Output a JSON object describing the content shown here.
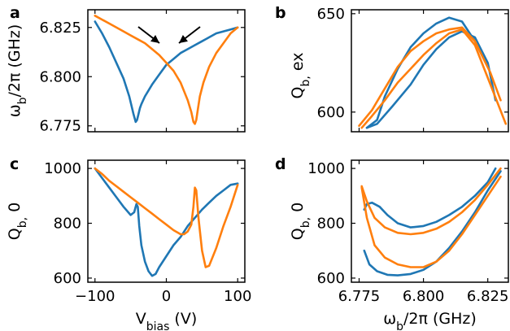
{
  "colors": {
    "blue": "#1f77b4",
    "orange": "#ff7f0e"
  },
  "chart_data": [
    {
      "id": "a",
      "panel_label": "a",
      "type": "line",
      "ylabel": "ω_b/2π (GHz)",
      "xlabel": "",
      "xlim": [
        -110,
        110
      ],
      "ylim": [
        6.772,
        6.834
      ],
      "xticks": [
        -100,
        0,
        100
      ],
      "xtick_labels": [
        "",
        "",
        ""
      ],
      "yticks": [
        6.775,
        6.8,
        6.825
      ],
      "ytick_labels": [
        "6.775",
        "6.800",
        "6.825"
      ],
      "annotations": [
        "arrow",
        "arrow"
      ],
      "series": [
        {
          "color": "blue",
          "x": [
            -100,
            -90,
            -80,
            -70,
            -60,
            -52,
            -46,
            -43,
            -41,
            -39,
            -37,
            -35,
            -30,
            -20,
            -10,
            0,
            10,
            20,
            30,
            40,
            50,
            60,
            70,
            80,
            90,
            100
          ],
          "y": [
            6.828,
            6.822,
            6.815,
            6.807,
            6.799,
            6.79,
            6.781,
            6.777,
            6.778,
            6.781,
            6.784,
            6.786,
            6.79,
            6.796,
            6.801,
            6.806,
            6.809,
            6.812,
            6.814,
            6.816,
            6.818,
            6.82,
            6.822,
            6.823,
            6.824,
            6.825
          ]
        },
        {
          "color": "orange",
          "x": [
            -100,
            -90,
            -80,
            -70,
            -60,
            -50,
            -40,
            -30,
            -20,
            -10,
            0,
            10,
            20,
            30,
            35,
            38,
            40,
            42,
            44,
            47,
            52,
            60,
            70,
            80,
            90,
            100
          ],
          "y": [
            6.831,
            6.829,
            6.827,
            6.825,
            6.823,
            6.821,
            6.819,
            6.817,
            6.814,
            6.811,
            6.807,
            6.803,
            6.797,
            6.788,
            6.782,
            6.777,
            6.776,
            6.778,
            6.783,
            6.79,
            6.797,
            6.805,
            6.812,
            6.817,
            6.822,
            6.825
          ]
        }
      ]
    },
    {
      "id": "b",
      "panel_label": "b",
      "type": "line",
      "ylabel": "Q_b, ex",
      "xlabel": "",
      "xlim": [
        6.772,
        6.833
      ],
      "ylim": [
        590,
        652
      ],
      "xticks": [
        6.775,
        6.8,
        6.825
      ],
      "xtick_labels": [
        "",
        "",
        ""
      ],
      "yticks": [
        600,
        650
      ],
      "ytick_labels": [
        "600",
        "650"
      ],
      "series": [
        {
          "color": "blue",
          "x": [
            6.778,
            6.782,
            6.785,
            6.79,
            6.795,
            6.8,
            6.805,
            6.81,
            6.815,
            6.82,
            6.825
          ],
          "y": [
            592,
            596,
            608,
            622,
            633,
            640,
            645,
            648,
            646,
            636,
            623
          ]
        },
        {
          "color": "blue",
          "x": [
            6.778,
            6.782,
            6.788,
            6.795,
            6.8,
            6.805,
            6.81,
            6.815,
            6.82,
            6.825,
            6.828
          ],
          "y": [
            592,
            594,
            603,
            614,
            624,
            632,
            638,
            641,
            638,
            625,
            606
          ]
        },
        {
          "color": "orange",
          "x": [
            6.775,
            6.78,
            6.785,
            6.79,
            6.795,
            6.8,
            6.805,
            6.81,
            6.815,
            6.82,
            6.826,
            6.83
          ],
          "y": [
            593,
            601,
            612,
            623,
            631,
            636,
            640,
            642,
            643,
            636,
            620,
            606
          ]
        },
        {
          "color": "orange",
          "x": [
            6.776,
            6.78,
            6.785,
            6.79,
            6.795,
            6.8,
            6.805,
            6.81,
            6.815,
            6.82,
            6.826,
            6.832
          ],
          "y": [
            592,
            598,
            606,
            615,
            622,
            629,
            635,
            640,
            642,
            634,
            614,
            594
          ]
        }
      ]
    },
    {
      "id": "c",
      "panel_label": "c",
      "type": "line",
      "ylabel": "Q_b, 0",
      "xlabel": "V_bias (V)",
      "xlim": [
        -110,
        110
      ],
      "ylim": [
        585,
        1030
      ],
      "xticks": [
        -100,
        0,
        100
      ],
      "xtick_labels": [
        "−100",
        "0",
        "100"
      ],
      "yticks": [
        600,
        800,
        1000
      ],
      "ytick_labels": [
        "600",
        "800",
        "1000"
      ],
      "series": [
        {
          "color": "blue",
          "x": [
            -100,
            -90,
            -80,
            -70,
            -60,
            -50,
            -45,
            -42,
            -40,
            -38,
            -35,
            -30,
            -25,
            -20,
            -15,
            -10,
            0,
            10,
            20,
            30,
            40,
            50,
            60,
            70,
            80,
            90,
            100
          ],
          "y": [
            1000,
            965,
            930,
            895,
            860,
            830,
            840,
            870,
            860,
            790,
            720,
            660,
            625,
            608,
            615,
            640,
            680,
            720,
            750,
            790,
            820,
            850,
            875,
            900,
            920,
            940,
            945
          ]
        },
        {
          "color": "orange",
          "x": [
            -100,
            -90,
            -80,
            -70,
            -60,
            -50,
            -40,
            -30,
            -20,
            -10,
            0,
            10,
            20,
            25,
            30,
            35,
            38,
            40,
            42,
            45,
            50,
            55,
            60,
            70,
            80,
            90,
            100
          ],
          "y": [
            1000,
            980,
            955,
            935,
            915,
            895,
            875,
            855,
            835,
            815,
            795,
            775,
            760,
            760,
            770,
            795,
            860,
            930,
            920,
            820,
            700,
            640,
            645,
            710,
            790,
            860,
            940
          ]
        }
      ]
    },
    {
      "id": "d",
      "panel_label": "d",
      "type": "line",
      "ylabel": "Q_b, 0",
      "xlabel": "ω_b/2π (GHz)",
      "xlim": [
        6.772,
        6.833
      ],
      "ylim": [
        585,
        1030
      ],
      "xticks": [
        6.775,
        6.8,
        6.825
      ],
      "xtick_labels": [
        "6.775",
        "6.800",
        "6.825"
      ],
      "yticks": [
        600,
        800,
        1000
      ],
      "ytick_labels": [
        "600",
        "800",
        "1000"
      ],
      "series": [
        {
          "color": "blue",
          "x": [
            6.777,
            6.778,
            6.78,
            6.783,
            6.786,
            6.79,
            6.795,
            6.8,
            6.805,
            6.81,
            6.815,
            6.82,
            6.825,
            6.828
          ],
          "y": [
            850,
            870,
            875,
            860,
            830,
            800,
            785,
            790,
            805,
            830,
            860,
            900,
            950,
            1000
          ]
        },
        {
          "color": "blue",
          "x": [
            6.777,
            6.779,
            6.782,
            6.786,
            6.79,
            6.795,
            6.8,
            6.805,
            6.81,
            6.815,
            6.82,
            6.825,
            6.83
          ],
          "y": [
            700,
            650,
            625,
            612,
            610,
            615,
            630,
            660,
            710,
            770,
            840,
            920,
            990
          ]
        },
        {
          "color": "orange",
          "x": [
            6.776,
            6.778,
            6.781,
            6.785,
            6.79,
            6.795,
            6.8,
            6.805,
            6.81,
            6.815,
            6.82,
            6.825,
            6.83
          ],
          "y": [
            935,
            880,
            820,
            785,
            765,
            760,
            765,
            780,
            805,
            840,
            885,
            940,
            1000
          ]
        },
        {
          "color": "orange",
          "x": [
            6.776,
            6.778,
            6.781,
            6.785,
            6.79,
            6.795,
            6.8,
            6.805,
            6.81,
            6.815,
            6.82,
            6.825,
            6.83
          ],
          "y": [
            930,
            820,
            720,
            675,
            650,
            640,
            640,
            660,
            700,
            760,
            830,
            900,
            970
          ]
        }
      ]
    }
  ]
}
